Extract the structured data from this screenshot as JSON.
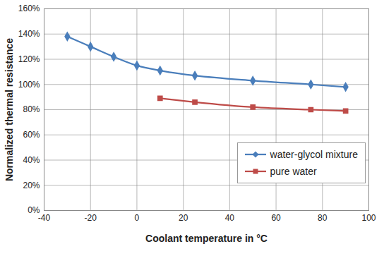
{
  "chart_data": {
    "type": "line",
    "x_label": "Coolant temperature in °C",
    "y_label": "Normalized thermal resistance",
    "x": [
      -30,
      -20,
      -10,
      0,
      10,
      25,
      50,
      75,
      90
    ],
    "series": [
      {
        "name": "water-glycol mixture",
        "color": "#4a7ebb",
        "marker": "diamond",
        "values": [
          138,
          130,
          122,
          115,
          111,
          107,
          103,
          100,
          98
        ]
      },
      {
        "name": "pure water",
        "color": "#be4b48",
        "marker": "square",
        "values": [
          null,
          null,
          null,
          null,
          89,
          86,
          82,
          80,
          79
        ]
      }
    ],
    "xlim": [
      -40,
      100
    ],
    "xticks": [
      -40,
      -20,
      0,
      20,
      40,
      60,
      80,
      100
    ],
    "ylim": [
      0,
      160
    ],
    "yticks": [
      {
        "value": 0,
        "label": "0%"
      },
      {
        "value": 20,
        "label": "20%"
      },
      {
        "value": 40,
        "label": "40%"
      },
      {
        "value": 60,
        "label": "60%"
      },
      {
        "value": 80,
        "label": "80%"
      },
      {
        "value": 100,
        "label": "100%"
      },
      {
        "value": 120,
        "label": "120%"
      },
      {
        "value": 140,
        "label": "140%"
      },
      {
        "value": 160,
        "label": "160%"
      }
    ],
    "grid": true,
    "legend": "lower right"
  }
}
